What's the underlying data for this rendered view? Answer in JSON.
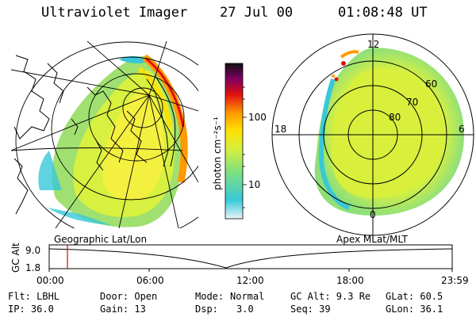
{
  "header": {
    "instrument": "Ultraviolet Imager",
    "date": "27 Jul 00",
    "time": "01:08:48 UT"
  },
  "left_panel": {
    "label": "Geographic Lat/Lon"
  },
  "right_panel": {
    "label": "Apex MLat/MLT",
    "mlt_labels": [
      "12",
      "18",
      "6",
      "0"
    ],
    "lat_labels": [
      "60",
      "70",
      "80"
    ]
  },
  "colorbar": {
    "unit_label": "photon cm⁻²s⁻¹",
    "tick_labels": [
      "100",
      "10"
    ],
    "colors": [
      "#e9f4f8",
      "#38c8d8",
      "#7fe07f",
      "#d6ef3e",
      "#ffe000",
      "#ff9a00",
      "#e01010",
      "#800060",
      "#101010"
    ]
  },
  "timeline": {
    "axis_label": "GC Alt",
    "y_ticks": [
      "9.0",
      "1.8"
    ],
    "x_ticks": [
      "00:00",
      "06:00",
      "12:00",
      "18:00",
      "23:59"
    ],
    "marker_color": "#e00000"
  },
  "info": {
    "flt": "Flt: LBHL",
    "ip": "IP: 36.0",
    "door": "Door: Open",
    "gain": "Gain: 13",
    "mode_label": "Mode:",
    "mode_value": "Normal",
    "dsp_label": "Dsp:",
    "dsp_value": "3.0",
    "gcalt": "GC Alt: 9.3 Re",
    "seq": "Seq: 39",
    "glat": "GLat: 60.5",
    "glon": "GLon: 36.1"
  }
}
